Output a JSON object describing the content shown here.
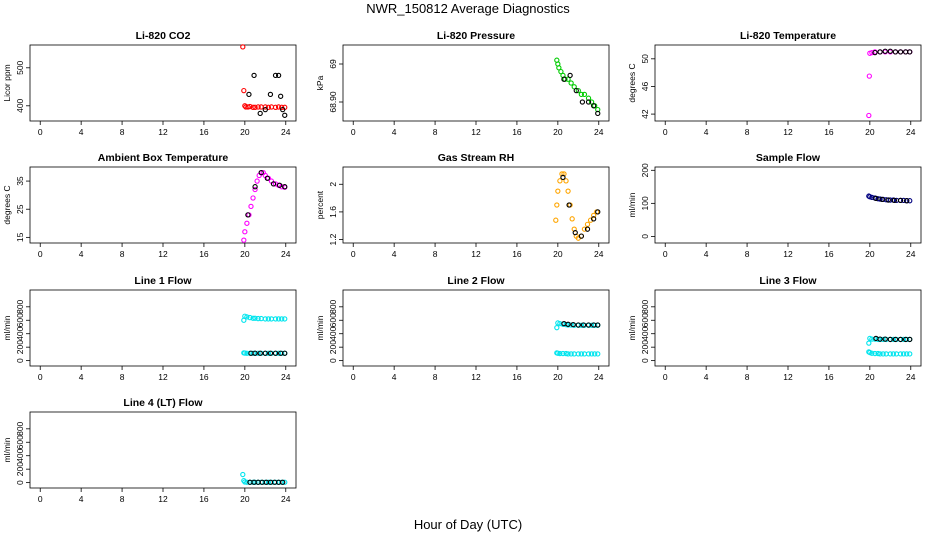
{
  "title": "NWR_150812  Average Diagnostics",
  "xlabel": "Hour of Day (UTC)",
  "colors": {
    "red": "#ff0000",
    "black": "#000000",
    "green": "#00cc00",
    "magenta": "#ff00ff",
    "orange": "#ffa500",
    "navy": "#000080",
    "cyan": "#00e5ee"
  },
  "chart_data": [
    {
      "type": "scatter",
      "title": "Li-820 CO2",
      "ylabel": "Licor ppm",
      "xlim": [
        -1,
        25
      ],
      "ylim": [
        360,
        560
      ],
      "xticks": [
        0,
        4,
        8,
        12,
        16,
        20,
        24
      ],
      "yticks": [
        400,
        500
      ],
      "series": [
        {
          "color": "#ff0000",
          "x": [
            19.8,
            19.9,
            20,
            20.1,
            20.3,
            20.5,
            20.8,
            21,
            21.3,
            21.6,
            22,
            22.3,
            22.6,
            23,
            23.3,
            23.6,
            23.9
          ],
          "y": [
            555,
            440,
            400,
            397,
            397,
            398,
            396,
            396,
            397,
            397,
            397,
            396,
            397,
            396,
            397,
            396,
            396
          ]
        },
        {
          "color": "#000000",
          "x": [
            20.4,
            20.9,
            21.5,
            22,
            22.5,
            23,
            23.3,
            23.5,
            23.7,
            23.9
          ],
          "y": [
            430,
            480,
            380,
            390,
            430,
            480,
            480,
            425,
            390,
            375
          ]
        }
      ]
    },
    {
      "type": "scatter",
      "title": "Li-820 Pressure",
      "ylabel": "kPa",
      "xlim": [
        -1,
        25
      ],
      "ylim": [
        68.85,
        69.05
      ],
      "xticks": [
        0,
        4,
        8,
        12,
        16,
        20,
        24
      ],
      "yticks": [
        68.9,
        69.0
      ],
      "series": [
        {
          "color": "#00cc00",
          "x": [
            19.9,
            20,
            20.1,
            20.3,
            20.5,
            20.7,
            21,
            21.3,
            21.6,
            22,
            22.3,
            22.6,
            23,
            23.3,
            23.6,
            23.9
          ],
          "y": [
            69.01,
            69.0,
            68.99,
            68.98,
            68.97,
            68.96,
            68.96,
            68.95,
            68.94,
            68.93,
            68.92,
            68.92,
            68.91,
            68.9,
            68.89,
            68.88
          ]
        },
        {
          "color": "#000000",
          "x": [
            20.6,
            21.2,
            21.8,
            22.4,
            23,
            23.5,
            23.9
          ],
          "y": [
            68.96,
            68.97,
            68.93,
            68.9,
            68.9,
            68.89,
            68.87
          ]
        }
      ]
    },
    {
      "type": "scatter",
      "title": "Li-820 Temperature",
      "ylabel": "degrees C",
      "xlim": [
        -1,
        25
      ],
      "ylim": [
        41,
        52
      ],
      "xticks": [
        0,
        4,
        8,
        12,
        16,
        20,
        24
      ],
      "yticks": [
        42,
        46,
        50
      ],
      "series": [
        {
          "color": "#ff00ff",
          "x": [
            19.9,
            19.95,
            20,
            20.2,
            20.5,
            21,
            21.5,
            22,
            22.5,
            23,
            23.5,
            23.9
          ],
          "y": [
            41.8,
            47.5,
            50.8,
            50.9,
            51,
            51,
            51,
            51,
            51,
            51,
            51,
            51
          ]
        },
        {
          "color": "#000000",
          "x": [
            20.5,
            21,
            21.5,
            22,
            22.5,
            23,
            23.5,
            23.9
          ],
          "y": [
            50.9,
            51,
            51.1,
            51.1,
            51,
            51,
            51,
            51
          ]
        }
      ]
    },
    {
      "type": "scatter",
      "title": "Ambient Box Temperature",
      "ylabel": "degrees C",
      "xlim": [
        -1,
        25
      ],
      "ylim": [
        13,
        40
      ],
      "xticks": [
        0,
        4,
        8,
        12,
        16,
        20,
        24
      ],
      "yticks": [
        15,
        25,
        35
      ],
      "series": [
        {
          "color": "#ff00ff",
          "x": [
            19.9,
            20,
            20.2,
            20.4,
            20.6,
            20.8,
            21,
            21.2,
            21.4,
            21.6,
            21.8,
            22,
            22.3,
            22.6,
            23,
            23.3,
            23.6,
            23.9
          ],
          "y": [
            14,
            17,
            20,
            23,
            26,
            29,
            32,
            35,
            37,
            38,
            38,
            37,
            36,
            35,
            34,
            33.5,
            33,
            32.8
          ]
        },
        {
          "color": "#000000",
          "x": [
            20.3,
            21,
            21.6,
            22.2,
            22.8,
            23.4,
            23.9
          ],
          "y": [
            23,
            33,
            38,
            36,
            34,
            33.5,
            33
          ]
        }
      ]
    },
    {
      "type": "scatter",
      "title": "Gas Stream RH",
      "ylabel": "percent",
      "xlim": [
        -1,
        25
      ],
      "ylim": [
        1.15,
        2.25
      ],
      "xticks": [
        0,
        4,
        8,
        12,
        16,
        20,
        24
      ],
      "yticks": [
        1.2,
        1.6,
        2.0
      ],
      "series": [
        {
          "color": "#ffa500",
          "x": [
            19.8,
            19.9,
            20,
            20.2,
            20.4,
            20.6,
            20.8,
            21,
            21.2,
            21.4,
            21.6,
            21.8,
            22,
            22.3,
            22.6,
            22.9,
            23.2,
            23.5,
            23.8
          ],
          "y": [
            1.48,
            1.7,
            1.9,
            2.05,
            2.15,
            2.15,
            2.05,
            1.9,
            1.7,
            1.5,
            1.35,
            1.25,
            1.22,
            1.25,
            1.35,
            1.42,
            1.48,
            1.55,
            1.6
          ]
        },
        {
          "color": "#000000",
          "x": [
            20.5,
            21.1,
            21.7,
            22.3,
            22.9,
            23.5,
            23.9
          ],
          "y": [
            2.1,
            1.7,
            1.3,
            1.25,
            1.35,
            1.5,
            1.6
          ]
        }
      ]
    },
    {
      "type": "scatter",
      "title": "Sample Flow",
      "ylabel": "ml/min",
      "xlim": [
        -1,
        25
      ],
      "ylim": [
        -20,
        210
      ],
      "xticks": [
        0,
        4,
        8,
        12,
        16,
        20,
        24
      ],
      "yticks": [
        0,
        100,
        200
      ],
      "series": [
        {
          "color": "#000080",
          "x": [
            19.9,
            20,
            20.2,
            20.5,
            20.8,
            21,
            21.3,
            21.6,
            22,
            22.3,
            22.6,
            23,
            23.3,
            23.6,
            23.9
          ],
          "y": [
            122,
            120,
            118,
            116,
            114,
            113,
            112,
            111,
            110,
            110,
            109,
            109,
            109,
            108,
            108
          ]
        },
        {
          "color": "#000000",
          "x": [
            20.6,
            21.2,
            21.8,
            22.4,
            23,
            23.6
          ],
          "y": [
            115,
            112,
            110,
            109,
            109,
            108
          ]
        }
      ]
    },
    {
      "type": "scatter",
      "title": "Line 1 Flow",
      "ylabel": "ml/min",
      "xlim": [
        -1,
        25
      ],
      "ylim": [
        -80,
        1050
      ],
      "xticks": [
        0,
        4,
        8,
        12,
        16,
        20,
        24
      ],
      "yticks": [
        0,
        200,
        400,
        600,
        800
      ],
      "series": [
        {
          "color": "#00e5ee",
          "x": [
            19.9,
            20,
            20.2,
            20.5,
            20.8,
            21,
            21.3,
            21.6,
            22,
            22.3,
            22.6,
            23,
            23.3,
            23.6,
            23.9
          ],
          "y": [
            600,
            660,
            650,
            640,
            630,
            630,
            625,
            625,
            620,
            620,
            620,
            620,
            620,
            620,
            620
          ]
        },
        {
          "color": "#00e5ee",
          "x": [
            19.9,
            20,
            20.2,
            20.5,
            20.8,
            21,
            21.3,
            21.6,
            22,
            22.3,
            22.6,
            23,
            23.3,
            23.6,
            23.9
          ],
          "y": [
            115,
            112,
            110,
            110,
            110,
            110,
            110,
            110,
            110,
            110,
            110,
            110,
            110,
            110,
            110
          ]
        },
        {
          "color": "#000000",
          "x": [
            20.6,
            21,
            21.5,
            22,
            22.5,
            23,
            23.5,
            23.9
          ],
          "y": [
            110,
            110,
            110,
            110,
            110,
            110,
            110,
            110
          ]
        }
      ]
    },
    {
      "type": "scatter",
      "title": "Line 2 Flow",
      "ylabel": "ml/min",
      "xlim": [
        -1,
        25
      ],
      "ylim": [
        -80,
        1050
      ],
      "xticks": [
        0,
        4,
        8,
        12,
        16,
        20,
        24
      ],
      "yticks": [
        0,
        200,
        400,
        600,
        800
      ],
      "series": [
        {
          "color": "#00e5ee",
          "x": [
            19.9,
            20,
            20.2,
            20.5,
            20.8,
            21,
            21.3,
            21.6,
            22,
            22.3,
            22.6,
            23,
            23.3,
            23.6,
            23.9
          ],
          "y": [
            490,
            560,
            550,
            540,
            535,
            530,
            530,
            525,
            525,
            525,
            525,
            525,
            525,
            525,
            525
          ]
        },
        {
          "color": "#00e5ee",
          "x": [
            19.9,
            20,
            20.2,
            20.5,
            20.8,
            21,
            21.3,
            21.6,
            22,
            22.3,
            22.6,
            23,
            23.3,
            23.6,
            23.9
          ],
          "y": [
            115,
            110,
            105,
            105,
            105,
            100,
            100,
            100,
            100,
            100,
            100,
            100,
            100,
            100,
            100
          ]
        },
        {
          "color": "#000000",
          "x": [
            20.6,
            21,
            21.5,
            22,
            22.5,
            23,
            23.5,
            23.9
          ],
          "y": [
            550,
            540,
            535,
            530,
            530,
            530,
            530,
            530
          ]
        }
      ]
    },
    {
      "type": "scatter",
      "title": "Line 3 Flow",
      "ylabel": "ml/min",
      "xlim": [
        -1,
        25
      ],
      "ylim": [
        -80,
        1050
      ],
      "xticks": [
        0,
        4,
        8,
        12,
        16,
        20,
        24
      ],
      "yticks": [
        0,
        200,
        400,
        600,
        800
      ],
      "series": [
        {
          "color": "#00e5ee",
          "x": [
            19.9,
            20,
            20.2,
            20.5,
            20.8,
            21,
            21.3,
            21.6,
            22,
            22.3,
            22.6,
            23,
            23.3,
            23.6,
            23.9
          ],
          "y": [
            260,
            330,
            320,
            320,
            315,
            315,
            315,
            315,
            315,
            315,
            315,
            315,
            315,
            315,
            315
          ]
        },
        {
          "color": "#00e5ee",
          "x": [
            19.9,
            20,
            20.2,
            20.5,
            20.8,
            21,
            21.3,
            21.6,
            22,
            22.3,
            22.6,
            23,
            23.3,
            23.6,
            23.9
          ],
          "y": [
            130,
            120,
            110,
            105,
            105,
            100,
            100,
            100,
            100,
            100,
            100,
            100,
            100,
            100,
            100
          ]
        },
        {
          "color": "#000000",
          "x": [
            20.6,
            21,
            21.5,
            22,
            22.5,
            23,
            23.5,
            23.9
          ],
          "y": [
            330,
            320,
            320,
            315,
            315,
            315,
            315,
            315
          ]
        }
      ]
    },
    {
      "type": "scatter",
      "title": "Line 4 (LT) Flow",
      "ylabel": "ml/min",
      "xlim": [
        -1,
        25
      ],
      "ylim": [
        -80,
        1050
      ],
      "xticks": [
        0,
        4,
        8,
        12,
        16,
        20,
        24
      ],
      "yticks": [
        0,
        200,
        400,
        600,
        800
      ],
      "series": [
        {
          "color": "#00e5ee",
          "x": [
            19.8,
            19.9,
            20,
            20.2,
            20.5,
            20.8,
            21,
            21.3,
            21.6,
            22,
            22.3,
            22.6,
            23,
            23.3,
            23.6,
            23.9
          ],
          "y": [
            120,
            30,
            10,
            5,
            5,
            5,
            5,
            5,
            5,
            5,
            5,
            5,
            5,
            5,
            5,
            5
          ]
        },
        {
          "color": "#000000",
          "x": [
            20.5,
            20.9,
            21.3,
            21.7,
            22.1,
            22.5,
            22.9,
            23.3,
            23.7
          ],
          "y": [
            5,
            5,
            5,
            5,
            5,
            5,
            5,
            5,
            5
          ]
        }
      ]
    }
  ]
}
